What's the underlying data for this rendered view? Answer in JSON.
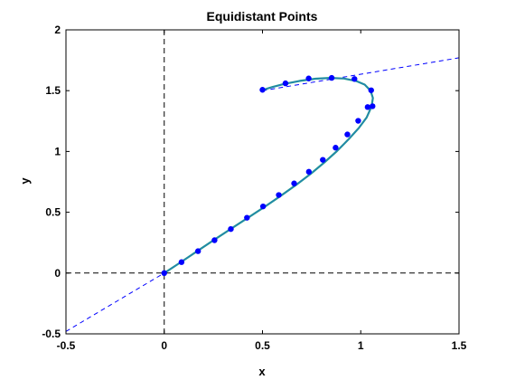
{
  "chart_data": {
    "type": "line",
    "title": "Equidistant Points",
    "xlabel": "x",
    "ylabel": "y",
    "xlim": [
      -0.5,
      1.5
    ],
    "ylim": [
      -0.5,
      2
    ],
    "xticks": [
      -0.5,
      0,
      0.5,
      1,
      1.5
    ],
    "xtick_labels": [
      "-0.5",
      "0",
      "0.5",
      "1",
      "1.5"
    ],
    "yticks": [
      -0.5,
      0,
      0.5,
      1,
      1.5,
      2
    ],
    "ytick_labels": [
      "-0.5",
      "0",
      "0.5",
      "1",
      "1.5",
      "2"
    ],
    "grid": false,
    "legend": "none",
    "series": [
      {
        "role": "curve",
        "style": "solid",
        "color": "#20a08c",
        "x": [
          0,
          0.083,
          0.168,
          0.254,
          0.341,
          0.428,
          0.513,
          0.594,
          0.672,
          0.746,
          0.815,
          0.879,
          0.937,
          0.99,
          1.03,
          1.055,
          1.062,
          1.05,
          1.02,
          0.975,
          0.915,
          0.845,
          0.77,
          0.69,
          0.61,
          0.55,
          0.5
        ],
        "y": [
          0,
          0.088,
          0.18,
          0.273,
          0.365,
          0.457,
          0.547,
          0.636,
          0.726,
          0.817,
          0.91,
          1.003,
          1.098,
          1.193,
          1.28,
          1.37,
          1.44,
          1.5,
          1.55,
          1.58,
          1.6,
          1.605,
          1.598,
          1.58,
          1.555,
          1.53,
          1.505
        ]
      },
      {
        "role": "points",
        "style": "markers",
        "color": "#0000ff",
        "x": [
          0,
          0.088,
          0.172,
          0.256,
          0.339,
          0.421,
          0.503,
          0.583,
          0.661,
          0.736,
          0.807,
          0.872,
          0.932,
          0.987,
          1.035,
          1.06,
          1.053,
          0.968,
          0.852,
          0.735,
          0.617,
          0.5
        ],
        "y": [
          0,
          0.09,
          0.18,
          0.27,
          0.362,
          0.455,
          0.548,
          0.642,
          0.737,
          0.833,
          0.931,
          1.031,
          1.14,
          1.252,
          1.365,
          1.372,
          1.503,
          1.596,
          1.605,
          1.6,
          1.56,
          1.507
        ]
      },
      {
        "role": "reference",
        "style": "dashed",
        "color": "#0000ff",
        "segments": [
          {
            "x": [
              -0.5,
              0
            ],
            "y": [
              -0.48,
              0
            ]
          },
          {
            "x": [
              0.5,
              1.5
            ],
            "y": [
              1.5,
              1.77
            ]
          }
        ]
      },
      {
        "role": "axes",
        "style": "dashed",
        "color": "#000000",
        "segments": [
          {
            "x": [
              0,
              0
            ],
            "y": [
              -0.5,
              2
            ]
          },
          {
            "x": [
              -0.5,
              1.5
            ],
            "y": [
              0,
              0
            ]
          }
        ]
      }
    ]
  }
}
